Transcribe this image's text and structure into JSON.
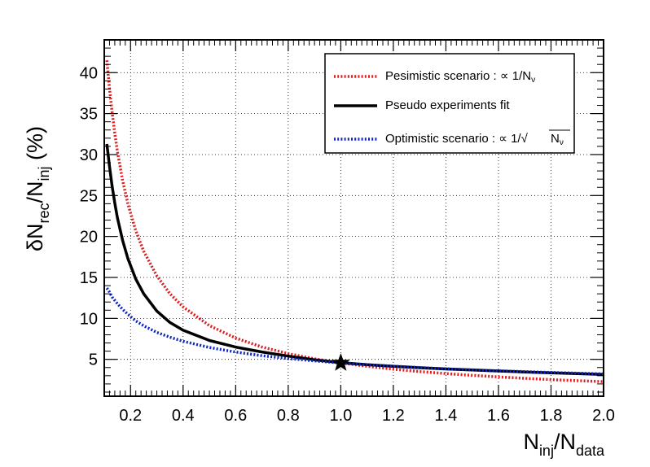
{
  "chart_data": {
    "type": "line",
    "xlim": [
      0.1,
      2.0
    ],
    "ylim": [
      0.5,
      44
    ],
    "x_ticks": [
      0.2,
      0.4,
      0.6,
      0.8,
      1.0,
      1.2,
      1.4,
      1.6,
      1.8,
      2.0
    ],
    "x_tick_labels": [
      "0.2",
      "0.4",
      "0.6",
      "0.8",
      "1.0",
      "1.2",
      "1.4",
      "1.6",
      "1.8",
      "2.0"
    ],
    "y_ticks": [
      5,
      10,
      15,
      20,
      25,
      30,
      35,
      40
    ],
    "y_tick_labels": [
      "5",
      "10",
      "15",
      "20",
      "25",
      "30",
      "35",
      "40"
    ],
    "xlabel": {
      "main1": "N",
      "sub1": "inj",
      "main2": "/N",
      "sub2": "data"
    },
    "ylabel": {
      "main1": "δN",
      "sub1": "rec",
      "main2": "/N",
      "sub2": "inj",
      "main3": " (%)"
    },
    "grid": true,
    "legend_position": "top-right",
    "legend": [
      {
        "text": "Pesimistic scenario : ∝ 1/N",
        "sub": "ν",
        "color": "#e3191c",
        "style": "dotted"
      },
      {
        "text": "Pseudo experiments fit",
        "sub": "",
        "color": "#000000",
        "style": "solid"
      },
      {
        "text": "Optimistic scenario : ∝ 1/√",
        "sub": "",
        "radicand": "N",
        "radicand_sub": "ν",
        "color": "#0a23c8",
        "style": "dotted"
      }
    ],
    "series": [
      {
        "name": "Pesimistic scenario : ∝ 1/N",
        "color": "#e3191c",
        "style": "dotted",
        "x": [
          0.11,
          0.12,
          0.13,
          0.14,
          0.15,
          0.17,
          0.19,
          0.22,
          0.25,
          0.3,
          0.35,
          0.4,
          0.5,
          0.6,
          0.7,
          0.8,
          0.9,
          1.0,
          1.1,
          1.2,
          1.3,
          1.4,
          1.5,
          1.6,
          1.7,
          1.8,
          1.9,
          2.0
        ],
        "y": [
          41.5,
          38.0,
          35.1,
          32.6,
          30.4,
          26.8,
          24.0,
          20.7,
          18.2,
          15.2,
          13.0,
          11.4,
          9.12,
          7.6,
          6.51,
          5.7,
          5.07,
          4.56,
          4.15,
          3.8,
          3.51,
          3.26,
          3.04,
          2.85,
          2.68,
          2.53,
          2.4,
          2.28
        ]
      },
      {
        "name": "Pseudo experiments fit",
        "color": "#000000",
        "style": "solid",
        "x": [
          0.11,
          0.12,
          0.13,
          0.14,
          0.15,
          0.17,
          0.19,
          0.22,
          0.25,
          0.3,
          0.35,
          0.4,
          0.5,
          0.6,
          0.7,
          0.8,
          0.9,
          1.0,
          1.1,
          1.2,
          1.3,
          1.4,
          1.5,
          1.6,
          1.7,
          1.8,
          1.9,
          2.0
        ],
        "y": [
          31.3,
          28.5,
          26.1,
          24.1,
          22.3,
          19.5,
          17.3,
          14.8,
          13.0,
          10.9,
          9.5,
          8.55,
          7.3,
          6.5,
          5.9,
          5.4,
          4.95,
          4.6,
          4.35,
          4.15,
          3.98,
          3.83,
          3.7,
          3.58,
          3.46,
          3.35,
          3.25,
          3.15
        ]
      },
      {
        "name": "Optimistic scenario : ∝ 1/√",
        "color": "#0a23c8",
        "style": "dotted",
        "x": [
          0.11,
          0.12,
          0.13,
          0.14,
          0.15,
          0.17,
          0.19,
          0.22,
          0.25,
          0.3,
          0.35,
          0.4,
          0.5,
          0.6,
          0.7,
          0.8,
          0.9,
          1.0,
          1.1,
          1.2,
          1.3,
          1.4,
          1.5,
          1.6,
          1.7,
          1.8,
          1.9,
          2.0
        ],
        "y": [
          13.7,
          13.2,
          12.6,
          12.2,
          11.8,
          11.1,
          10.5,
          9.7,
          9.1,
          8.3,
          7.7,
          7.2,
          6.45,
          5.89,
          5.45,
          5.1,
          4.81,
          4.56,
          4.35,
          4.16,
          4.0,
          3.85,
          3.72,
          3.6,
          3.5,
          3.4,
          3.31,
          3.22
        ]
      }
    ],
    "marker": {
      "x": 1.0,
      "y": 4.56,
      "shape": "star",
      "color": "#000000"
    }
  }
}
